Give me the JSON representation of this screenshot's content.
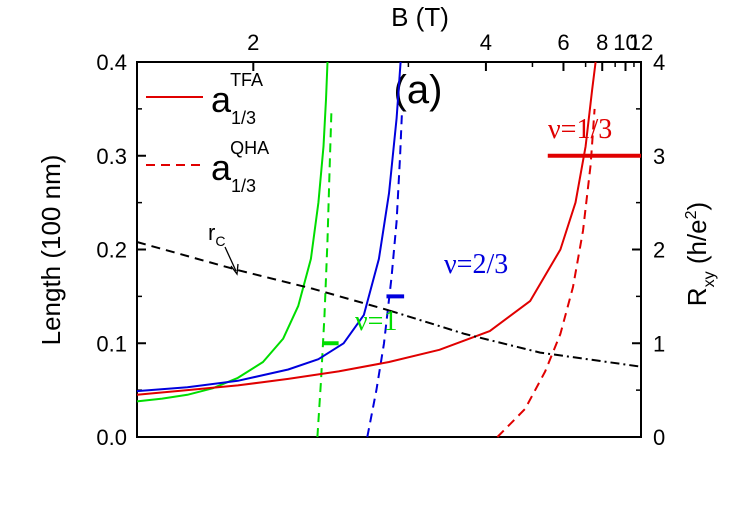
{
  "chart_data": {
    "type": "line",
    "panel_label": "(a)",
    "xlabel_top": "B (T)",
    "ylabel_left": "Length (100 nm)",
    "ylabel_right": {
      "base": "R",
      "sub": "xy",
      "unit_open": " (h/e",
      "sup": "2",
      "unit_close": ")"
    },
    "left_axis": {
      "ylim": [
        0,
        0.4
      ],
      "ticks": [
        "0.0",
        "0.1",
        "0.2",
        "0.3",
        "0.4"
      ]
    },
    "right_axis": {
      "ylim": [
        0,
        4
      ],
      "ticks": [
        "0",
        "1",
        "2",
        "3",
        "4"
      ]
    },
    "top_axis": {
      "ticks": [
        "2",
        "4",
        "6",
        "8",
        "10",
        "12"
      ]
    },
    "legend": {
      "position": "top-left",
      "items": [
        {
          "base": "a",
          "sub": "1/3",
          "sup": "TFA",
          "style": "solid",
          "color": "#e00000"
        },
        {
          "base": "a",
          "sub": "1/3",
          "sup": "QHA",
          "style": "dashed",
          "color": "#e00000"
        }
      ]
    },
    "annotations": {
      "rc": {
        "base": "r",
        "sub": "C"
      },
      "nu1": {
        "text": "ν=1",
        "color": "#00dd00"
      },
      "nu23": {
        "text": "ν=2/3",
        "color": "#0000dd"
      },
      "nu13": {
        "text": "ν=1/3",
        "color": "#e00000"
      }
    },
    "series": [
      {
        "key": "green_solid",
        "color": "#00dd00",
        "style": "solid",
        "points": [
          [
            0,
            0.038
          ],
          [
            0.05,
            0.041
          ],
          [
            0.1,
            0.045
          ],
          [
            0.15,
            0.052
          ],
          [
            0.2,
            0.063
          ],
          [
            0.25,
            0.08
          ],
          [
            0.29,
            0.105
          ],
          [
            0.32,
            0.14
          ],
          [
            0.345,
            0.19
          ],
          [
            0.36,
            0.25
          ],
          [
            0.37,
            0.31
          ],
          [
            0.375,
            0.36
          ],
          [
            0.378,
            0.4
          ]
        ]
      },
      {
        "key": "green_dashed",
        "color": "#00dd00",
        "style": "dashed",
        "points": [
          [
            0.358,
            0
          ],
          [
            0.365,
            0.06
          ],
          [
            0.372,
            0.13
          ],
          [
            0.378,
            0.21
          ],
          [
            0.383,
            0.3
          ],
          [
            0.386,
            0.35
          ]
        ]
      },
      {
        "key": "blue_solid",
        "color": "#0000dd",
        "style": "solid",
        "points": [
          [
            0,
            0.049
          ],
          [
            0.1,
            0.053
          ],
          [
            0.2,
            0.06
          ],
          [
            0.3,
            0.072
          ],
          [
            0.36,
            0.083
          ],
          [
            0.41,
            0.1
          ],
          [
            0.45,
            0.13
          ],
          [
            0.48,
            0.19
          ],
          [
            0.5,
            0.26
          ],
          [
            0.515,
            0.34
          ],
          [
            0.523,
            0.4
          ]
        ]
      },
      {
        "key": "blue_dashed",
        "color": "#0000dd",
        "style": "dashed",
        "points": [
          [
            0.457,
            0
          ],
          [
            0.475,
            0.05
          ],
          [
            0.49,
            0.1
          ],
          [
            0.505,
            0.17
          ],
          [
            0.515,
            0.23
          ],
          [
            0.522,
            0.3
          ],
          [
            0.526,
            0.35
          ]
        ]
      },
      {
        "key": "red_solid",
        "color": "#e00000",
        "style": "solid",
        "points": [
          [
            0,
            0.045
          ],
          [
            0.1,
            0.05
          ],
          [
            0.2,
            0.055
          ],
          [
            0.3,
            0.062
          ],
          [
            0.4,
            0.07
          ],
          [
            0.5,
            0.08
          ],
          [
            0.6,
            0.093
          ],
          [
            0.7,
            0.113
          ],
          [
            0.78,
            0.145
          ],
          [
            0.84,
            0.2
          ],
          [
            0.87,
            0.25
          ],
          [
            0.89,
            0.31
          ],
          [
            0.903,
            0.37
          ],
          [
            0.91,
            0.4
          ]
        ]
      },
      {
        "key": "red_dashed",
        "color": "#e00000",
        "style": "dashed",
        "points": [
          [
            0.715,
            0
          ],
          [
            0.77,
            0.03
          ],
          [
            0.81,
            0.07
          ],
          [
            0.84,
            0.11
          ],
          [
            0.865,
            0.16
          ],
          [
            0.885,
            0.22
          ],
          [
            0.9,
            0.29
          ],
          [
            0.908,
            0.35
          ]
        ]
      },
      {
        "key": "rc_dashed",
        "color": "#000000",
        "style": "dashed",
        "points": [
          [
            0,
            0.208
          ],
          [
            0.2,
            0.178
          ],
          [
            0.35,
            0.158
          ],
          [
            0.5,
            0.135
          ]
        ]
      },
      {
        "key": "rc_dashdot",
        "color": "#000000",
        "style": "dashdot",
        "points": [
          [
            0.5,
            0.135
          ],
          [
            0.65,
            0.11
          ],
          [
            0.8,
            0.09
          ],
          [
            1.0,
            0.075
          ]
        ]
      }
    ],
    "plateau_bars": [
      {
        "key": "nu1",
        "color": "#00dd00",
        "y": 0.1,
        "x": [
          0.37,
          0.4
        ]
      },
      {
        "key": "nu23",
        "color": "#0000dd",
        "y": 0.15,
        "x": [
          0.495,
          0.53
        ]
      },
      {
        "key": "nu13",
        "color": "#e00000",
        "y": 0.3,
        "x": [
          0.815,
          1.0
        ]
      }
    ]
  }
}
